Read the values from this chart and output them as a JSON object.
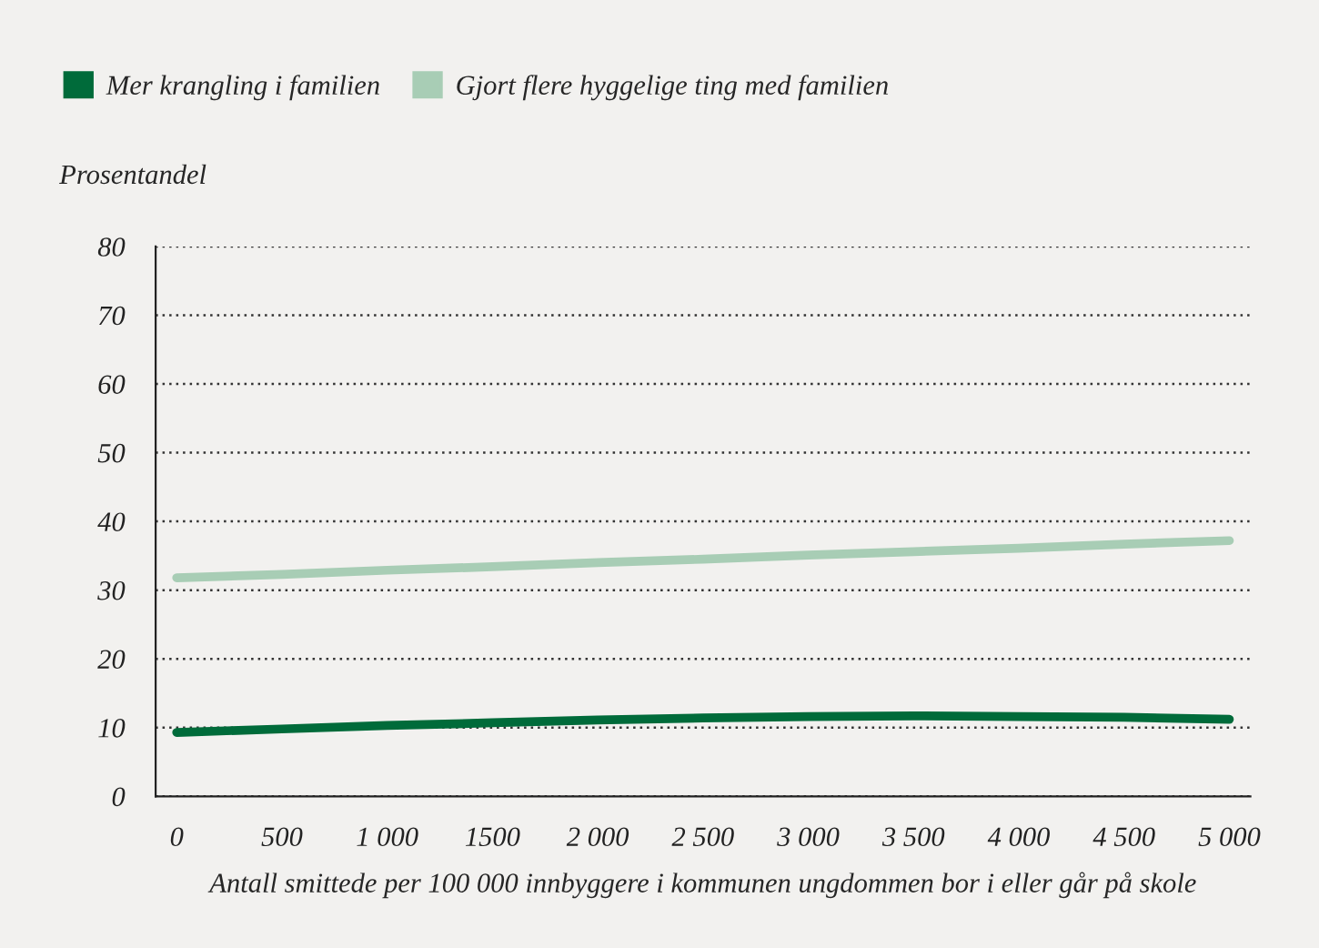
{
  "chart_data": {
    "type": "line",
    "ylabel": "Prosentandel",
    "xlabel": "Antall smittede per 100 000 innbyggere i kommunen ungdommen bor i eller går på skole",
    "x": [
      0,
      500,
      1000,
      1500,
      2000,
      2500,
      3000,
      3500,
      4000,
      4500,
      5000
    ],
    "series": [
      {
        "name": "Mer krangling i familien",
        "color": "#006b3a",
        "values": [
          9.3,
          9.8,
          10.3,
          10.7,
          11.1,
          11.4,
          11.6,
          11.7,
          11.6,
          11.5,
          11.2
        ]
      },
      {
        "name": "Gjort flere hyggelige ting med familien",
        "color": "#a8cdb5",
        "values": [
          31.8,
          32.3,
          32.9,
          33.4,
          34.0,
          34.5,
          35.1,
          35.6,
          36.1,
          36.7,
          37.2
        ]
      }
    ],
    "xlim": [
      -100,
      5100
    ],
    "ylim": [
      0,
      80
    ],
    "xticks": [
      0,
      500,
      {
        "value": 1000,
        "label": "1 000"
      },
      {
        "value": 1500,
        "label": "1500"
      },
      {
        "value": 2000,
        "label": "2 000"
      },
      {
        "value": 2500,
        "label": "2 500"
      },
      {
        "value": 3000,
        "label": "3 000"
      },
      {
        "value": 3500,
        "label": "3 500"
      },
      {
        "value": 4000,
        "label": "4 000"
      },
      {
        "value": 4500,
        "label": "4 500"
      },
      {
        "value": 5000,
        "label": "5 000"
      }
    ],
    "yticks": [
      0,
      10,
      20,
      30,
      40,
      50,
      60,
      70,
      80
    ],
    "grid": "y",
    "legend": "top left",
    "marker": "none",
    "line_style": "solid"
  }
}
